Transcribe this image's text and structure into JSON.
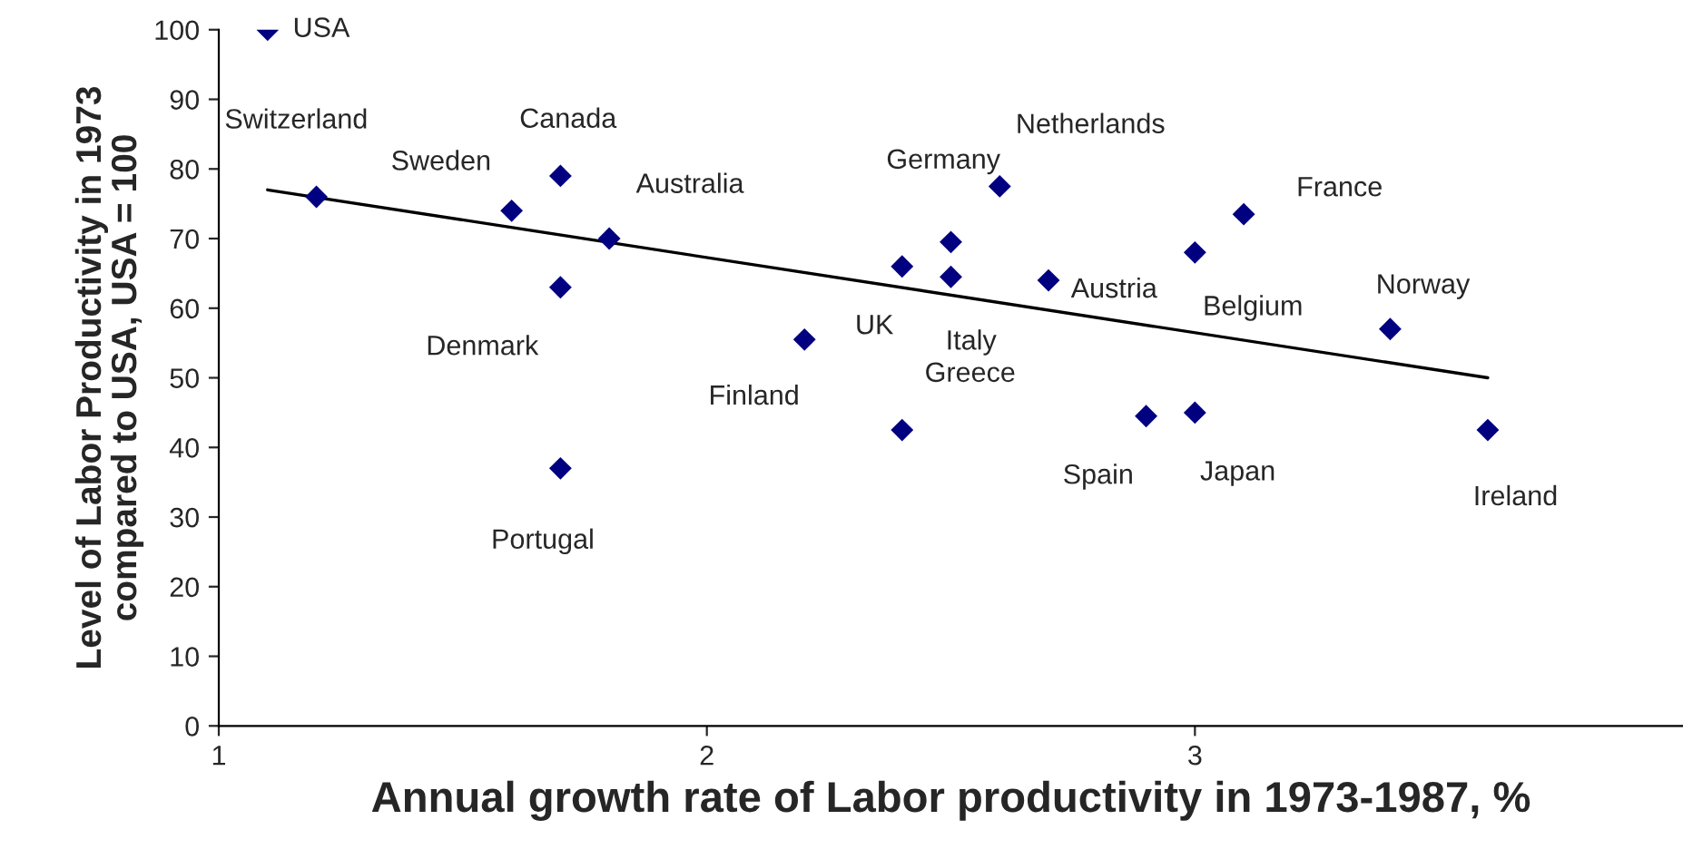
{
  "chart_data": {
    "type": "scatter",
    "xlabel": "Annual growth rate of Labor productivity in 1973-1987, %",
    "ylabel": "Level of Labor Productivity in 1973\ncompared to USA, USA = 100",
    "xlim": [
      1,
      4
    ],
    "ylim": [
      0,
      100
    ],
    "xticks": [
      1,
      2,
      3
    ],
    "yticks": [
      0,
      10,
      20,
      30,
      40,
      50,
      60,
      70,
      80,
      90,
      100
    ],
    "grid": false,
    "legend": false,
    "series": [
      {
        "marker": "diamond",
        "color": "#000080",
        "x": [
          1.1,
          1.2,
          1.7,
          1.6,
          1.8,
          1.7,
          1.7,
          2.2,
          2.5,
          2.4,
          2.5,
          2.4,
          2.6,
          2.7,
          3.0,
          3.1,
          3.4,
          2.9,
          3.0,
          3.6
        ],
        "values": [
          100,
          76,
          79,
          74,
          70,
          63,
          37,
          55.5,
          69.5,
          66,
          64.5,
          42.5,
          77.5,
          64,
          68,
          73.5,
          57,
          44.5,
          45,
          42.5
        ]
      },
      {
        "type": "line",
        "color": "#000000",
        "x": [
          1.1,
          3.6
        ],
        "values": [
          77,
          50
        ]
      }
    ],
    "annotations": [
      {
        "text": "USA",
        "x": 1.1,
        "y": 100
      },
      {
        "text": "Switzerland",
        "x": 1.2,
        "y": 76
      },
      {
        "text": "Canada",
        "x": 1.7,
        "y": 79
      },
      {
        "text": "Sweden",
        "x": 1.6,
        "y": 74
      },
      {
        "text": "Australia",
        "x": 1.8,
        "y": 70
      },
      {
        "text": "Denmark",
        "x": 1.7,
        "y": 63
      },
      {
        "text": "Portugal",
        "x": 1.7,
        "y": 37
      },
      {
        "text": "Finland",
        "x": 2.2,
        "y": 55.5
      },
      {
        "text": "Germany",
        "x": 2.5,
        "y": 69.5
      },
      {
        "text": "UK",
        "x": 2.4,
        "y": 66
      },
      {
        "text": "Italy",
        "x": 2.5,
        "y": 64.5
      },
      {
        "text": "Greece",
        "x": 2.4,
        "y": 42.5
      },
      {
        "text": "Netherlands",
        "x": 2.6,
        "y": 77.5
      },
      {
        "text": "Austria",
        "x": 2.7,
        "y": 64
      },
      {
        "text": "Belgium",
        "x": 3.0,
        "y": 68
      },
      {
        "text": "France",
        "x": 3.1,
        "y": 73.5
      },
      {
        "text": "Norway",
        "x": 3.4,
        "y": 57
      },
      {
        "text": "Spain",
        "x": 2.9,
        "y": 44.5
      },
      {
        "text": "Japan",
        "x": 3.0,
        "y": 45
      },
      {
        "text": "Ireland",
        "x": 3.6,
        "y": 42.5
      }
    ]
  }
}
